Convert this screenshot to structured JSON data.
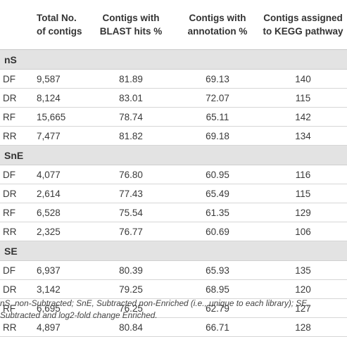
{
  "table": {
    "headers": [
      "",
      "Total No. of contigs",
      "Contigs with BLAST hits %",
      "Contigs with annotation %",
      "Contigs assigned to KEGG pathway"
    ],
    "header_lines": [
      [
        "",
        ""
      ],
      [
        "Total No.",
        "of contigs"
      ],
      [
        "Contigs with",
        "BLAST hits %"
      ],
      [
        "Contigs with",
        "annotation %"
      ],
      [
        "Contigs assigned",
        "to KEGG pathway"
      ]
    ],
    "groups": [
      {
        "name": "nS",
        "rows": [
          [
            "DF",
            "9,587",
            "81.89",
            "69.13",
            "140"
          ],
          [
            "DR",
            "8,124",
            "83.01",
            "72.07",
            "115"
          ],
          [
            "RF",
            "15,665",
            "78.74",
            "65.11",
            "142"
          ],
          [
            "RR",
            "7,477",
            "81.82",
            "69.18",
            "134"
          ]
        ]
      },
      {
        "name": "SnE",
        "rows": [
          [
            "DF",
            "4,077",
            "76.80",
            "60.95",
            "116"
          ],
          [
            "DR",
            "2,614",
            "77.43",
            "65.49",
            "115"
          ],
          [
            "RF",
            "6,528",
            "75.54",
            "61.35",
            "129"
          ],
          [
            "RR",
            "2,325",
            "76.77",
            "60.69",
            "106"
          ]
        ]
      },
      {
        "name": "SE",
        "rows": [
          [
            "DF",
            "6,937",
            "80.39",
            "65.93",
            "135"
          ],
          [
            "DR",
            "3,142",
            "79.25",
            "68.95",
            "120"
          ],
          [
            "RF",
            "6,695",
            "76.25",
            "62.79",
            "127"
          ],
          [
            "RR",
            "4,897",
            "80.84",
            "66.71",
            "128"
          ]
        ]
      }
    ]
  },
  "footnote": "nS, non-Subtracted; SnE, Subtracted non-Enriched (i.e., unique to each library); SE, Subtracted and log2-fold change Enriched."
}
